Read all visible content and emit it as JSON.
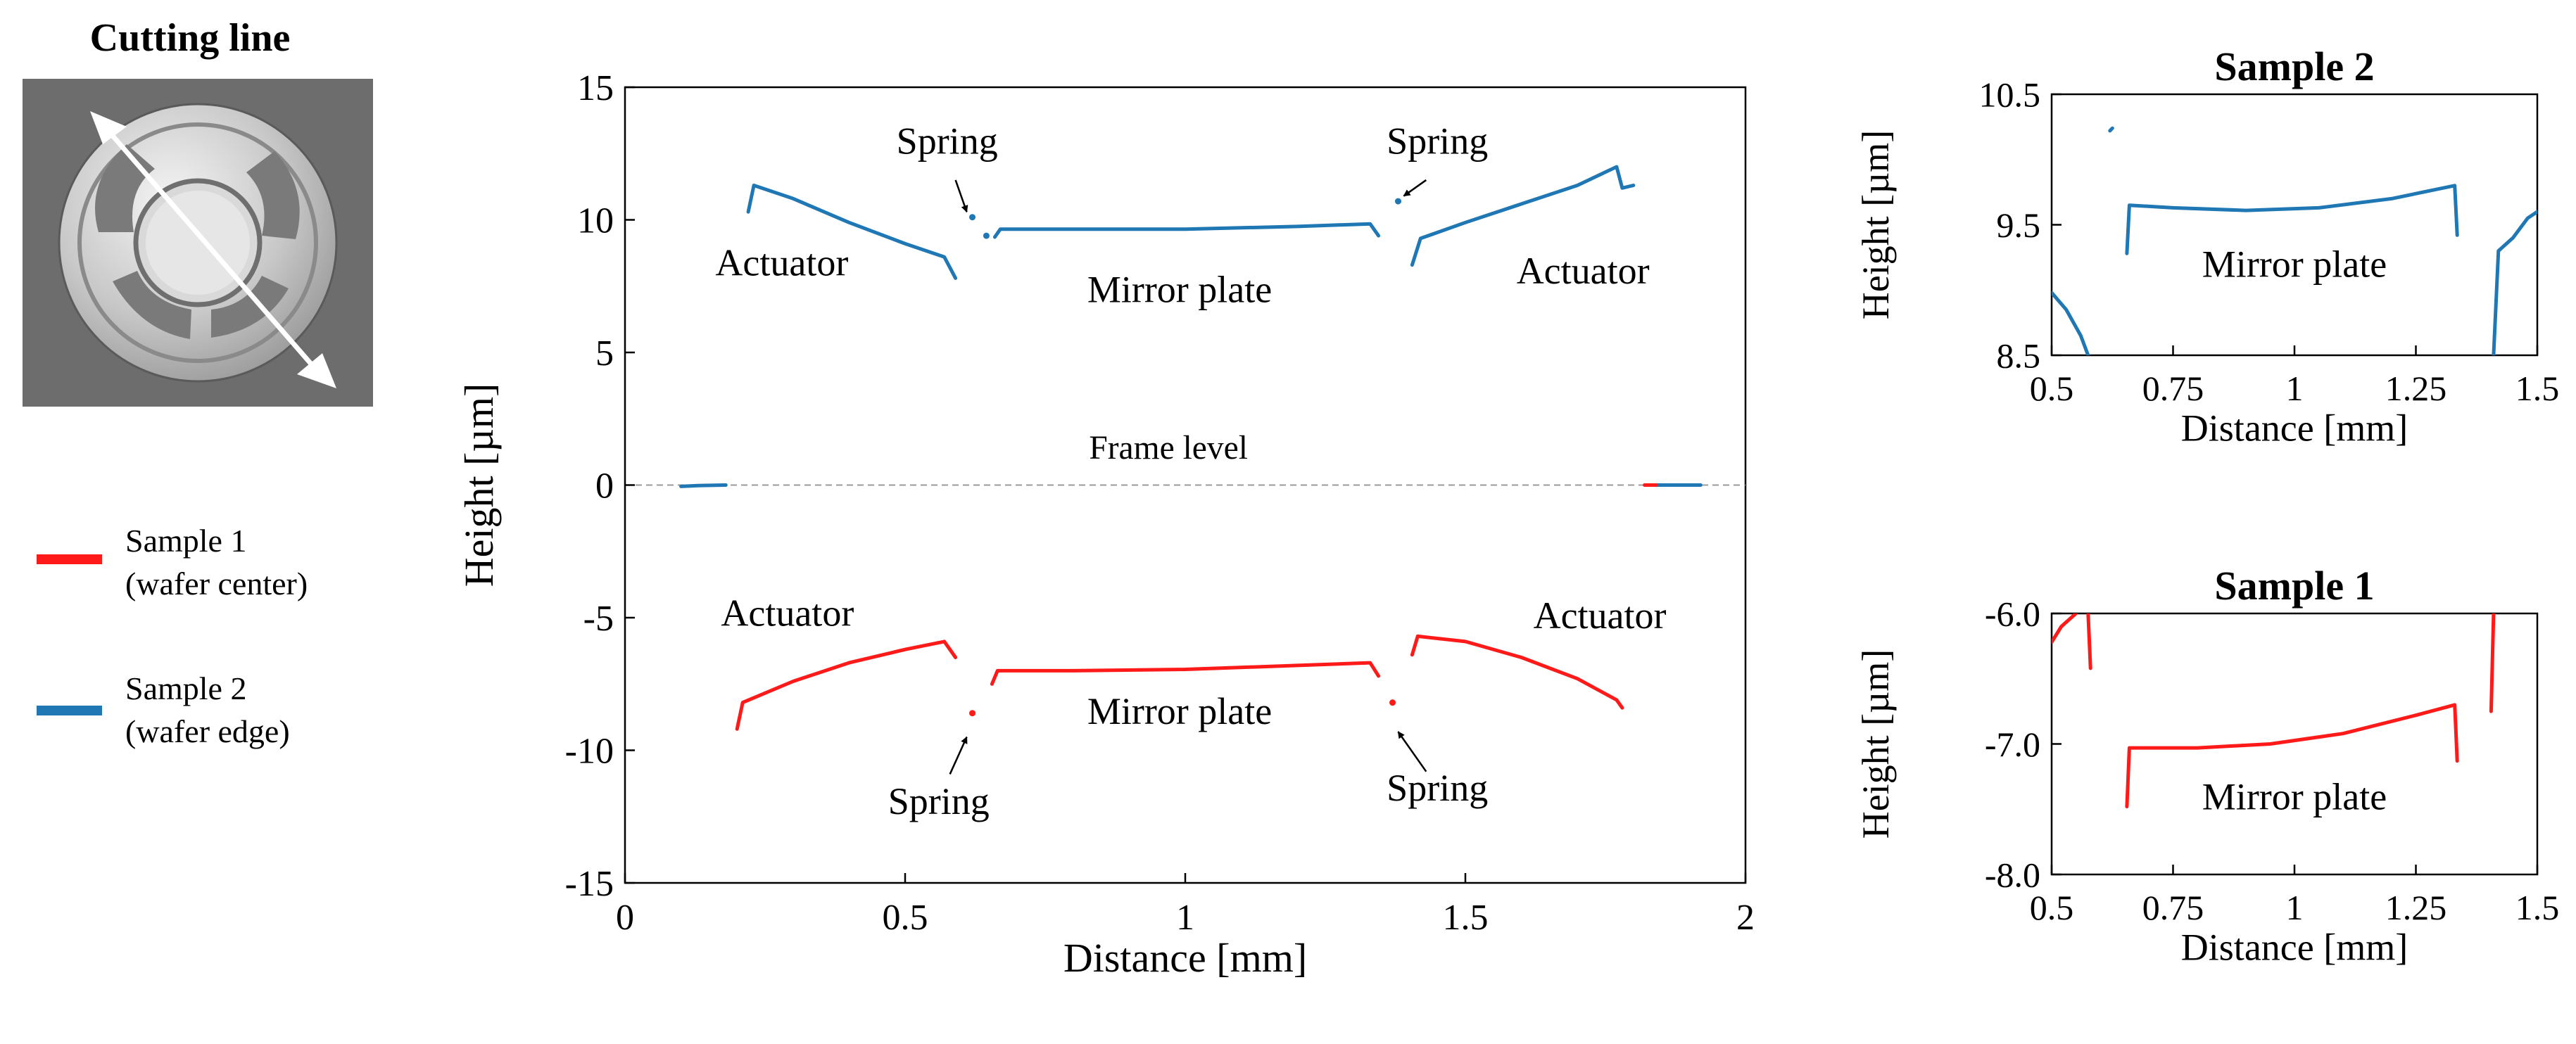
{
  "cut_title": "Cutting line",
  "legend": {
    "items": [
      {
        "line1": "Sample 1",
        "line2": "(wafer center)",
        "color": "#ff1a1a"
      },
      {
        "line1": "Sample 2",
        "line2": "(wafer edge)",
        "color": "#1f77b4"
      }
    ]
  },
  "chart_data": [
    {
      "type": "line",
      "title": "",
      "xlabel": "Distance [mm]",
      "ylabel": "Height [µm]",
      "xlim": [
        0,
        2
      ],
      "ylim": [
        -15,
        15
      ],
      "xticks": [
        "0",
        "0.5",
        "1",
        "1.5",
        "2"
      ],
      "yticks": [
        "15",
        "10",
        "5",
        "0",
        "-5",
        "-10",
        "-15"
      ],
      "reference_line": {
        "y": 0,
        "label": "Frame level"
      },
      "series": [
        {
          "name": "Sample 2",
          "color": "#1f77b4",
          "segments": [
            [
              [
                0.1,
                -0.05
              ],
              [
                0.13,
                -0.02
              ],
              [
                0.18,
                0.0
              ]
            ],
            [
              [
                0.22,
                10.3
              ],
              [
                0.23,
                11.3
              ],
              [
                0.3,
                10.8
              ],
              [
                0.4,
                9.9
              ],
              [
                0.5,
                9.1
              ],
              [
                0.57,
                8.6
              ],
              [
                0.59,
                7.8
              ]
            ],
            [
              [
                0.62,
                10.1
              ]
            ],
            [
              [
                0.645,
                9.4
              ]
            ],
            [
              [
                0.66,
                9.35
              ],
              [
                0.67,
                9.65
              ],
              [
                0.8,
                9.65
              ],
              [
                1.0,
                9.65
              ],
              [
                1.2,
                9.75
              ],
              [
                1.33,
                9.85
              ],
              [
                1.345,
                9.4
              ]
            ],
            [
              [
                1.38,
                10.7
              ]
            ],
            [
              [
                1.405,
                8.3
              ],
              [
                1.42,
                9.3
              ],
              [
                1.5,
                9.9
              ],
              [
                1.6,
                10.6
              ],
              [
                1.7,
                11.3
              ],
              [
                1.77,
                12.0
              ],
              [
                1.78,
                11.2
              ],
              [
                1.8,
                11.3
              ]
            ],
            [
              [
                1.82,
                0.0
              ],
              [
                1.87,
                0.0
              ],
              [
                1.92,
                0.0
              ]
            ]
          ]
        },
        {
          "name": "Sample 1",
          "color": "#ff1a1a",
          "segments": [
            [
              [
                0.2,
                -9.2
              ],
              [
                0.21,
                -8.2
              ],
              [
                0.3,
                -7.4
              ],
              [
                0.4,
                -6.7
              ],
              [
                0.5,
                -6.2
              ],
              [
                0.57,
                -5.9
              ],
              [
                0.59,
                -6.5
              ]
            ],
            [
              [
                0.62,
                -8.6
              ]
            ],
            [
              [
                0.655,
                -7.5
              ],
              [
                0.665,
                -7.0
              ],
              [
                0.8,
                -7.0
              ],
              [
                1.0,
                -6.95
              ],
              [
                1.2,
                -6.8
              ],
              [
                1.33,
                -6.7
              ],
              [
                1.345,
                -7.2
              ]
            ],
            [
              [
                1.37,
                -8.2
              ]
            ],
            [
              [
                1.405,
                -6.4
              ],
              [
                1.415,
                -5.7
              ],
              [
                1.5,
                -5.9
              ],
              [
                1.6,
                -6.5
              ],
              [
                1.7,
                -7.3
              ],
              [
                1.77,
                -8.1
              ],
              [
                1.78,
                -8.4
              ]
            ],
            [
              [
                1.82,
                0.0
              ],
              [
                1.84,
                0.0
              ]
            ]
          ]
        }
      ],
      "annotations": [
        {
          "text": "Spring",
          "x": 0.575,
          "y": 12.5
        },
        {
          "text": "Spring",
          "x": 1.45,
          "y": 12.5
        },
        {
          "text": "Actuator",
          "x": 0.28,
          "y": 7.9
        },
        {
          "text": "Mirror plate",
          "x": 0.99,
          "y": 6.9
        },
        {
          "text": "Actuator",
          "x": 1.71,
          "y": 7.6
        },
        {
          "text": "Frame level",
          "x": 0.97,
          "y": 1.0
        },
        {
          "text": "Actuator",
          "x": 0.29,
          "y": -5.3
        },
        {
          "text": "Mirror plate",
          "x": 0.99,
          "y": -9.0
        },
        {
          "text": "Spring",
          "x": 0.56,
          "y": -12.4
        },
        {
          "text": "Actuator",
          "x": 1.74,
          "y": -5.4
        },
        {
          "text": "Spring",
          "x": 1.45,
          "y": -11.9
        }
      ]
    },
    {
      "type": "line",
      "title": "Sample 2",
      "xlabel": "Distance [mm]",
      "ylabel": "Height [µm]",
      "xlim": [
        0.5,
        1.5
      ],
      "ylim": [
        8.5,
        10.5
      ],
      "xticks": [
        "0.5",
        "0.75",
        "1",
        "1.25",
        "1.5"
      ],
      "yticks": [
        "10.5",
        "9.5",
        "8.5"
      ],
      "series": [
        {
          "name": "Sample 2",
          "color": "#1f77b4",
          "segments": [
            [
              [
                0.5,
                8.98
              ],
              [
                0.53,
                8.85
              ],
              [
                0.56,
                8.65
              ],
              [
                0.575,
                8.5
              ]
            ],
            [
              [
                0.62,
                10.22
              ],
              [
                0.625,
                10.24
              ]
            ],
            [
              [
                0.655,
                9.28
              ],
              [
                0.66,
                9.65
              ],
              [
                0.75,
                9.63
              ],
              [
                0.9,
                9.61
              ],
              [
                1.05,
                9.63
              ],
              [
                1.2,
                9.7
              ],
              [
                1.33,
                9.8
              ],
              [
                1.335,
                9.42
              ]
            ],
            [
              [
                1.41,
                8.5
              ],
              [
                1.42,
                9.3
              ],
              [
                1.45,
                9.4
              ],
              [
                1.48,
                9.55
              ],
              [
                1.5,
                9.6
              ]
            ]
          ]
        }
      ],
      "annotations": [
        {
          "text": "Mirror plate",
          "x": 1.0,
          "y": 9.1
        }
      ]
    },
    {
      "type": "line",
      "title": "Sample 1",
      "xlabel": "Distance [mm]",
      "ylabel": "Height [µm]",
      "xlim": [
        0.5,
        1.5
      ],
      "ylim": [
        -8.0,
        -6.0
      ],
      "xticks": [
        "0.5",
        "0.75",
        "1",
        "1.25",
        "1.5"
      ],
      "yticks": [
        "-6.0",
        "-7.0",
        "-8.0"
      ],
      "series": [
        {
          "name": "Sample 1",
          "color": "#ff1a1a",
          "segments": [
            [
              [
                0.5,
                -6.22
              ],
              [
                0.52,
                -6.1
              ],
              [
                0.55,
                -6.0
              ]
            ],
            [
              [
                0.575,
                -6.0
              ],
              [
                0.58,
                -6.42
              ]
            ],
            [
              [
                0.655,
                -7.48
              ],
              [
                0.66,
                -7.03
              ],
              [
                0.8,
                -7.03
              ],
              [
                0.95,
                -7.0
              ],
              [
                1.1,
                -6.92
              ],
              [
                1.25,
                -6.78
              ],
              [
                1.33,
                -6.7
              ],
              [
                1.335,
                -7.13
              ]
            ],
            [
              [
                1.405,
                -6.75
              ],
              [
                1.41,
                -6.0
              ]
            ]
          ]
        }
      ],
      "annotations": [
        {
          "text": "Mirror plate",
          "x": 1.0,
          "y": -7.5
        }
      ]
    }
  ]
}
